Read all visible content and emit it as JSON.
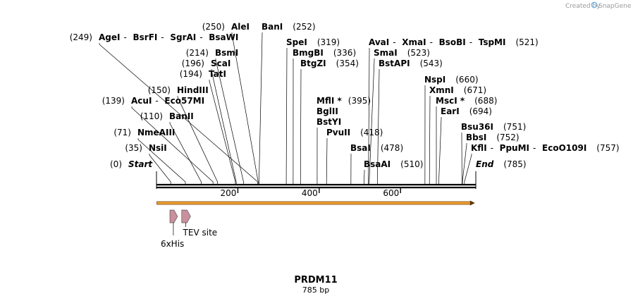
{
  "credit": {
    "prefix": "Created by",
    "brand": "SnapGene"
  },
  "sequence": {
    "name": "PRDM11",
    "length_label": "785 bp",
    "length": 785
  },
  "ruler": {
    "ticks": [
      {
        "value": 200,
        "label": "200"
      },
      {
        "value": 400,
        "label": "400"
      },
      {
        "value": 600,
        "label": "600"
      }
    ]
  },
  "features": [
    {
      "id": "6xhis",
      "label": "6xHis",
      "start": 33,
      "end": 50,
      "color": "#c9909d"
    },
    {
      "id": "tev",
      "label": "TEV site",
      "start": 62,
      "end": 82,
      "color": "#c9909d"
    },
    {
      "id": "orf",
      "label": "",
      "start": 1,
      "end": 783,
      "color": "#f0a030"
    }
  ],
  "sites": [
    {
      "id": "start",
      "enzymes": [
        "Start"
      ],
      "pos": "(0)",
      "posLeft": true,
      "cut": 0,
      "italic": true
    },
    {
      "id": "nsii",
      "enzymes": [
        "NsiI"
      ],
      "pos": "(35)",
      "posLeft": true,
      "cut": 35
    },
    {
      "id": "nmeaiii",
      "enzymes": [
        "NmeAIII"
      ],
      "pos": "(71)",
      "posLeft": true,
      "cut": 71
    },
    {
      "id": "banii",
      "enzymes": [
        "BanII"
      ],
      "pos": "(110)",
      "posLeft": true,
      "cut": 110
    },
    {
      "id": "acui",
      "enzymes": [
        "AcuI",
        "Eco57MI"
      ],
      "pos": "(139)",
      "posLeft": true,
      "cut": 139
    },
    {
      "id": "hindiii",
      "enzymes": [
        "HindIII"
      ],
      "pos": "(150)",
      "posLeft": true,
      "cut": 150
    },
    {
      "id": "tati",
      "enzymes": [
        "TatI"
      ],
      "pos": "(194)",
      "posLeft": true,
      "cut": 194
    },
    {
      "id": "scai",
      "enzymes": [
        "ScaI"
      ],
      "pos": "(196)",
      "posLeft": true,
      "cut": 196
    },
    {
      "id": "bsmi",
      "enzymes": [
        "BsmI"
      ],
      "pos": "(214)",
      "posLeft": true,
      "cut": 214
    },
    {
      "id": "agei",
      "enzymes": [
        "AgeI",
        "BsrFI",
        "SgrAI",
        "BsaWI"
      ],
      "pos": "(249)",
      "posLeft": true,
      "cut": 249
    },
    {
      "id": "alei",
      "enzymes": [
        "AleI"
      ],
      "pos": "(250)",
      "posLeft": true,
      "cut": 250
    },
    {
      "id": "bani",
      "enzymes": [
        "BanI"
      ],
      "pos": "(252)",
      "posLeft": false,
      "cut": 252
    },
    {
      "id": "spei",
      "enzymes": [
        "SpeI"
      ],
      "pos": "(319)",
      "posLeft": false,
      "cut": 319
    },
    {
      "id": "bmgbi",
      "enzymes": [
        "BmgBI"
      ],
      "pos": "(336)",
      "posLeft": false,
      "cut": 336
    },
    {
      "id": "btgzi",
      "enzymes": [
        "BtgZI"
      ],
      "pos": "(354)",
      "posLeft": false,
      "cut": 354
    },
    {
      "id": "mfli",
      "enzymes": [
        "MflI *",
        "BglII",
        "BstYI"
      ],
      "pos": "(395)",
      "posLeft": false,
      "cut": 395
    },
    {
      "id": "pvuii",
      "enzymes": [
        "PvuII"
      ],
      "pos": "(418)",
      "posLeft": false,
      "cut": 418
    },
    {
      "id": "bsai",
      "enzymes": [
        "BsaI"
      ],
      "pos": "(478)",
      "posLeft": false,
      "cut": 478
    },
    {
      "id": "bsaai",
      "enzymes": [
        "BsaAI"
      ],
      "pos": "(510)",
      "posLeft": false,
      "cut": 510
    },
    {
      "id": "avai",
      "enzymes": [
        "AvaI",
        "XmaI",
        "BsoBI",
        "TspMI"
      ],
      "pos": "(521)",
      "posLeft": false,
      "cut": 521
    },
    {
      "id": "smai",
      "enzymes": [
        "SmaI"
      ],
      "pos": "(523)",
      "posLeft": false,
      "cut": 523
    },
    {
      "id": "bstapi",
      "enzymes": [
        "BstAPI"
      ],
      "pos": "(543)",
      "posLeft": false,
      "cut": 543
    },
    {
      "id": "nspi",
      "enzymes": [
        "NspI"
      ],
      "pos": "(660)",
      "posLeft": false,
      "cut": 660
    },
    {
      "id": "xmni",
      "enzymes": [
        "XmnI"
      ],
      "pos": "(671)",
      "posLeft": false,
      "cut": 671
    },
    {
      "id": "msci",
      "enzymes": [
        "MscI *"
      ],
      "pos": "(688)",
      "posLeft": false,
      "cut": 688
    },
    {
      "id": "eari",
      "enzymes": [
        "EarI"
      ],
      "pos": "(694)",
      "posLeft": false,
      "cut": 694
    },
    {
      "id": "bsu36i",
      "enzymes": [
        "Bsu36I"
      ],
      "pos": "(751)",
      "posLeft": false,
      "cut": 751
    },
    {
      "id": "bbsi",
      "enzymes": [
        "BbsI"
      ],
      "pos": "(752)",
      "posLeft": false,
      "cut": 752
    },
    {
      "id": "kfli",
      "enzymes": [
        "KflI",
        "PpuMI",
        "EcoO109I"
      ],
      "pos": "(757)",
      "posLeft": false,
      "cut": 757
    },
    {
      "id": "end",
      "enzymes": [
        "End"
      ],
      "pos": "(785)",
      "posLeft": false,
      "cut": 785,
      "italic": true
    }
  ]
}
